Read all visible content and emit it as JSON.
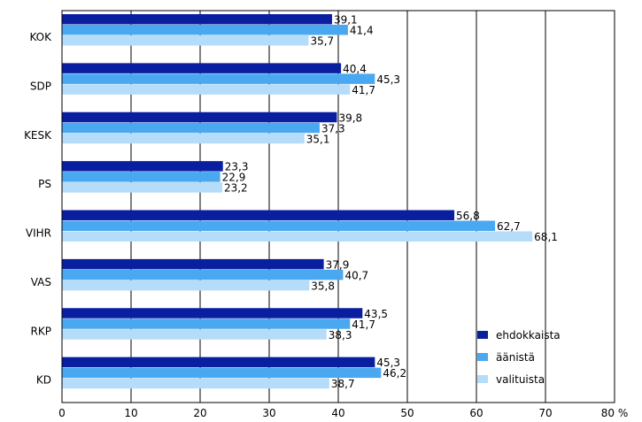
{
  "chart_data": {
    "type": "bar",
    "orientation": "horizontal",
    "categories": [
      "KOK",
      "SDP",
      "KESK",
      "PS",
      "VIHR",
      "VAS",
      "RKP",
      "KD"
    ],
    "series": [
      {
        "name": "ehdokkaista",
        "color": "#0a1fa0",
        "values": [
          39.1,
          40.4,
          39.8,
          23.3,
          56.8,
          37.9,
          43.5,
          45.3
        ]
      },
      {
        "name": "äänistä",
        "color": "#4aa8f0",
        "values": [
          41.4,
          45.3,
          37.3,
          22.9,
          62.7,
          40.7,
          41.7,
          46.2
        ]
      },
      {
        "name": "valituista",
        "color": "#b5dcf8",
        "values": [
          35.7,
          41.7,
          35.1,
          23.2,
          68.1,
          35.8,
          38.3,
          38.7
        ]
      }
    ],
    "value_labels": [
      [
        "39,1",
        "41,4",
        "35,7"
      ],
      [
        "40,4",
        "45,3",
        "41,7"
      ],
      [
        "39,8",
        "37,3",
        "35,1"
      ],
      [
        "23,3",
        "22,9",
        "23,2"
      ],
      [
        "56,8",
        "62,7",
        "68,1"
      ],
      [
        "37,9",
        "40,7",
        "35,8"
      ],
      [
        "43,5",
        "41,7",
        "38,3"
      ],
      [
        "45,3",
        "46,2",
        "38,7"
      ]
    ],
    "xlim": [
      0,
      80
    ],
    "x_ticks": [
      "0",
      "10",
      "20",
      "30",
      "40",
      "50",
      "60",
      "70",
      "80 %"
    ],
    "grid": true,
    "legend_position": "bottom-right"
  }
}
